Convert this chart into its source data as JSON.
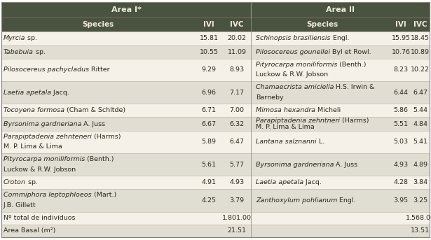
{
  "header_bg": "#4a5240",
  "header_text": "#f0ebe0",
  "row_odd_bg": "#f5f0e8",
  "row_even_bg": "#e0ddd2",
  "text_color": "#2a2a1a",
  "area1_header": "Area I*",
  "area2_header": "Area II",
  "area1_rows": [
    [
      [
        "Myrcia",
        true
      ],
      [
        " sp.",
        false
      ]
    ],
    [
      [
        "Tabebuia",
        true
      ],
      [
        " sp.",
        false
      ]
    ],
    [
      [
        "Pilosocereus pachycladus",
        true
      ],
      [
        " Ritter",
        false
      ]
    ],
    [
      [
        "Laetia apetala",
        true
      ],
      [
        " Jacq.",
        false
      ]
    ],
    [
      [
        "Tocoyena formosa",
        true
      ],
      [
        " (Cham & Schltde)",
        false
      ]
    ],
    [
      [
        "Byrsonima gardneriana",
        true
      ],
      [
        " A. Juss",
        false
      ]
    ],
    [
      [
        "Parapiptadenia zehnteneri",
        true
      ],
      [
        " (Harms)",
        false
      ],
      [
        "\nM. P. Lima & Lima",
        false
      ]
    ],
    [
      [
        "Pityrocarpa moniliformis",
        true
      ],
      [
        " (Benth.)",
        false
      ],
      [
        "\nLuckow & R.W. Jobson",
        false
      ]
    ],
    [
      [
        "Croton",
        true
      ],
      [
        " sp.",
        false
      ]
    ],
    [
      [
        "Commiphora leptophloeos",
        true
      ],
      [
        " (Mart.)",
        false
      ],
      [
        "\nJ.B. Gillett",
        false
      ]
    ]
  ],
  "area1_vals": [
    [
      "15.81",
      "20.02"
    ],
    [
      "10.55",
      "11.09"
    ],
    [
      "9.29",
      "8.93"
    ],
    [
      "6.96",
      "7.17"
    ],
    [
      "6.71",
      "7.00"
    ],
    [
      "6.67",
      "6.32"
    ],
    [
      "5.89",
      "6.47"
    ],
    [
      "5.61",
      "5.77"
    ],
    [
      "4.91",
      "4.93"
    ],
    [
      "4.25",
      "3.79"
    ]
  ],
  "area2_rows": [
    [
      [
        "Schinopsis brasiliensis",
        true
      ],
      [
        " Engl.",
        false
      ]
    ],
    [
      [
        "Pilosocereus gounellei",
        true
      ],
      [
        " Byl et Rowl.",
        false
      ]
    ],
    [
      [
        "Pityrocarpa moniliformis",
        true
      ],
      [
        " (Benth.)",
        false
      ],
      [
        "\nLuckow & R.W. Jobson",
        false
      ]
    ],
    [
      [
        "Chamaecrista amiciella",
        true
      ],
      [
        " H.S. Irwin &",
        false
      ],
      [
        "\nBarneby",
        false
      ]
    ],
    [
      [
        "Mimosa hexandra",
        true
      ],
      [
        " Micheli",
        false
      ]
    ],
    [
      [
        "Parapiptadenia zehntneri",
        true
      ],
      [
        " (Harms)",
        false
      ],
      [
        "\nM. P. Lima & Lima",
        false
      ]
    ],
    [
      [
        "Lantana salznanni",
        true
      ],
      [
        " L.",
        false
      ]
    ],
    [
      [
        "Byrsonima gardneriana",
        true
      ],
      [
        " A. Juss",
        false
      ]
    ],
    [
      [
        "Laetia apetala",
        true
      ],
      [
        " Jacq.",
        false
      ]
    ],
    [
      [
        "Zanthoxylum pohlianum",
        true
      ],
      [
        " Engl.",
        false
      ]
    ]
  ],
  "area2_vals": [
    [
      "15.95",
      "18.45"
    ],
    [
      "10.76",
      "10.89"
    ],
    [
      "8.23",
      "10.22"
    ],
    [
      "6.44",
      "6.47"
    ],
    [
      "5.86",
      "5.44"
    ],
    [
      "5.51",
      "4.84"
    ],
    [
      "5.03",
      "5.41"
    ],
    [
      "4.93",
      "4.89"
    ],
    [
      "4.28",
      "3.84"
    ],
    [
      "3.95",
      "3.25"
    ]
  ],
  "footer_label1": "Nº total de indivíduos",
  "footer_val1_a1": "1.801.00",
  "footer_val1_a2": "1.568.00",
  "footer_label2": "Area Basal (m²)",
  "footer_val2_a1": "21.51",
  "footer_val2_a2": "13.51",
  "row_multiline": [
    false,
    false,
    true,
    true,
    false,
    false,
    true,
    true,
    false,
    true
  ]
}
